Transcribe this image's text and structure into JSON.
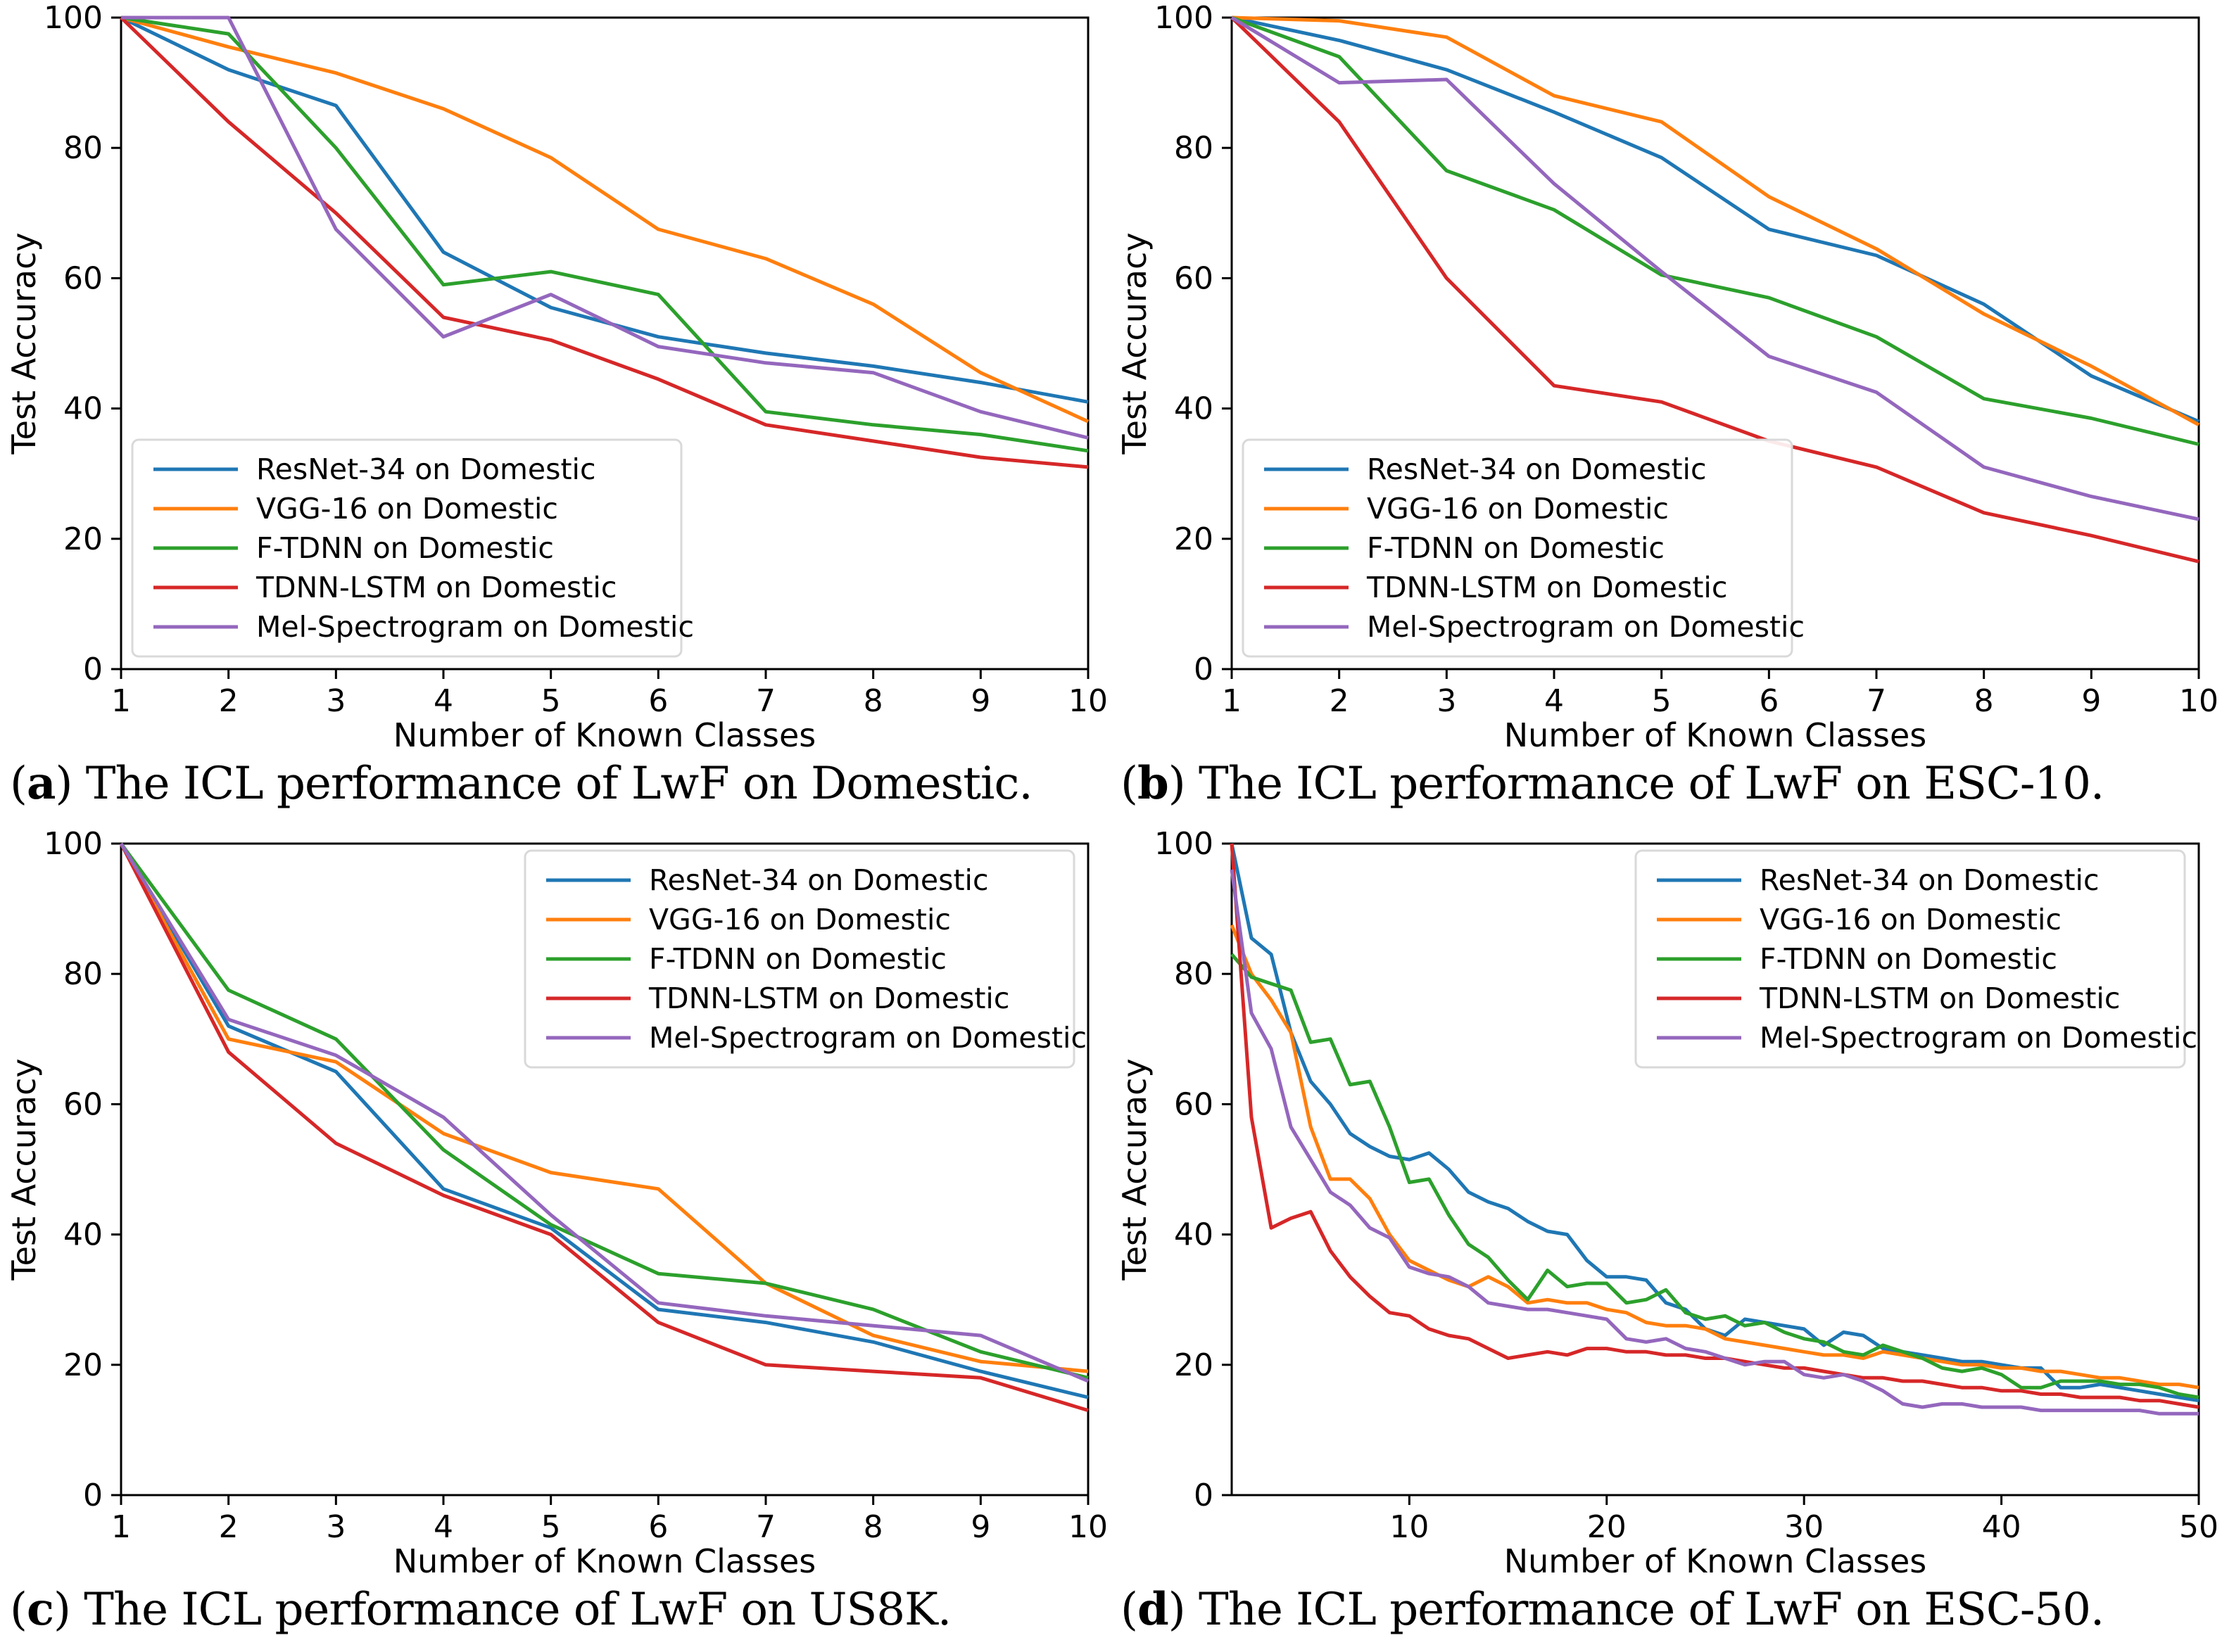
{
  "style": {
    "background": "#ffffff",
    "axis_color": "#000000",
    "legend_border": "#d9d9d9",
    "legend_background": "#ffffff",
    "series_line_width": 5,
    "spine_width": 3
  },
  "chart_data": [
    {
      "id": "a",
      "type": "line",
      "title": "",
      "xlabel": "Number of Known Classes",
      "ylabel": "Test Accuracy",
      "xlim": [
        1,
        10
      ],
      "ylim": [
        0,
        100
      ],
      "x_ticks": [
        1,
        2,
        3,
        4,
        5,
        6,
        7,
        8,
        9,
        10
      ],
      "y_ticks": [
        0,
        20,
        40,
        60,
        80,
        100
      ],
      "grid": false,
      "legend": {
        "location": "lower-left"
      },
      "caption": {
        "letter": "a",
        "text": "The ICL performance of LwF on Domestic."
      },
      "x": [
        1,
        2,
        3,
        4,
        5,
        6,
        7,
        8,
        9,
        10
      ],
      "series": [
        {
          "name": "ResNet-34 on Domestic",
          "color": "#1f77b4",
          "values": [
            100,
            92,
            86.5,
            64,
            55.5,
            51,
            48.5,
            46.5,
            44,
            41
          ]
        },
        {
          "name": "VGG-16 on Domestic",
          "color": "#ff7f0e",
          "values": [
            100,
            95.5,
            91.5,
            86,
            78.5,
            67.5,
            63,
            56,
            45.5,
            38
          ]
        },
        {
          "name": "F-TDNN on Domestic",
          "color": "#2ca02c",
          "values": [
            100,
            97.5,
            80,
            59,
            61,
            57.5,
            39.5,
            37.5,
            36,
            33.5
          ]
        },
        {
          "name": "TDNN-LSTM on Domestic",
          "color": "#d62728",
          "values": [
            100,
            84,
            70,
            54,
            50.5,
            44.5,
            37.5,
            35,
            32.5,
            31
          ]
        },
        {
          "name": "Mel-Spectrogram on Domestic",
          "color": "#9467bd",
          "values": [
            100,
            100,
            67.5,
            51,
            57.5,
            49.5,
            47,
            45.5,
            39.5,
            35.5
          ]
        }
      ]
    },
    {
      "id": "b",
      "type": "line",
      "title": "",
      "xlabel": "Number of Known Classes",
      "ylabel": "Test Accuracy",
      "xlim": [
        1,
        10
      ],
      "ylim": [
        0,
        100
      ],
      "x_ticks": [
        1,
        2,
        3,
        4,
        5,
        6,
        7,
        8,
        9,
        10
      ],
      "y_ticks": [
        0,
        20,
        40,
        60,
        80,
        100
      ],
      "grid": false,
      "legend": {
        "location": "lower-left"
      },
      "caption": {
        "letter": "b",
        "text": "The ICL performance of LwF on ESC-10."
      },
      "x": [
        1,
        2,
        3,
        4,
        5,
        6,
        7,
        8,
        9,
        10
      ],
      "series": [
        {
          "name": "ResNet-34 on Domestic",
          "color": "#1f77b4",
          "values": [
            100,
            96.5,
            92,
            85.5,
            78.5,
            67.5,
            63.5,
            56,
            45,
            38
          ]
        },
        {
          "name": "VGG-16 on Domestic",
          "color": "#ff7f0e",
          "values": [
            100,
            99.5,
            97,
            88,
            84,
            72.5,
            64.5,
            54.5,
            46.5,
            37.5
          ]
        },
        {
          "name": "F-TDNN on Domestic",
          "color": "#2ca02c",
          "values": [
            100,
            94,
            76.5,
            70.5,
            60.5,
            57,
            51,
            41.5,
            38.5,
            34.5
          ]
        },
        {
          "name": "TDNN-LSTM on Domestic",
          "color": "#d62728",
          "values": [
            100,
            84,
            60,
            43.5,
            41,
            35,
            31,
            24,
            20.5,
            16.5
          ]
        },
        {
          "name": "Mel-Spectrogram on Domestic",
          "color": "#9467bd",
          "values": [
            100,
            90,
            90.5,
            74.5,
            61,
            48,
            42.5,
            31,
            26.5,
            23
          ]
        }
      ]
    },
    {
      "id": "c",
      "type": "line",
      "title": "",
      "xlabel": "Number of Known Classes",
      "ylabel": "Test Accuracy",
      "xlim": [
        1,
        10
      ],
      "ylim": [
        0,
        100
      ],
      "x_ticks": [
        1,
        2,
        3,
        4,
        5,
        6,
        7,
        8,
        9,
        10
      ],
      "y_ticks": [
        0,
        20,
        40,
        60,
        80,
        100
      ],
      "grid": false,
      "legend": {
        "location": "upper-right"
      },
      "caption": {
        "letter": "c",
        "text": "The ICL performance of LwF on US8K."
      },
      "x": [
        1,
        2,
        3,
        4,
        5,
        6,
        7,
        8,
        9,
        10
      ],
      "series": [
        {
          "name": "ResNet-34 on Domestic",
          "color": "#1f77b4",
          "values": [
            100,
            72,
            65,
            47,
            41,
            28.5,
            26.5,
            23.5,
            19,
            15
          ]
        },
        {
          "name": "VGG-16 on Domestic",
          "color": "#ff7f0e",
          "values": [
            100,
            70,
            66.5,
            55.5,
            49.5,
            47,
            32.5,
            24.5,
            20.5,
            19
          ]
        },
        {
          "name": "F-TDNN on Domestic",
          "color": "#2ca02c",
          "values": [
            100,
            77.5,
            70,
            53,
            41.5,
            34,
            32.5,
            28.5,
            22,
            18
          ]
        },
        {
          "name": "TDNN-LSTM on Domestic",
          "color": "#d62728",
          "values": [
            100,
            68,
            54,
            46,
            40,
            26.5,
            20,
            19,
            18,
            13
          ]
        },
        {
          "name": "Mel-Spectrogram on Domestic",
          "color": "#9467bd",
          "values": [
            100,
            73,
            67.5,
            58,
            43,
            29.5,
            27.5,
            26,
            24.5,
            17.5
          ]
        }
      ]
    },
    {
      "id": "d",
      "type": "line",
      "title": "",
      "xlabel": "Number of Known Classes",
      "ylabel": "Test Accuracy",
      "xlim": [
        1,
        50
      ],
      "ylim": [
        0,
        100
      ],
      "x_ticks": [
        10,
        20,
        30,
        40,
        50
      ],
      "y_ticks": [
        0,
        20,
        40,
        60,
        80,
        100
      ],
      "grid": false,
      "legend": {
        "location": "upper-right"
      },
      "caption": {
        "letter": "d",
        "text": "The ICL performance of LwF on ESC-50."
      },
      "x": [
        1,
        2,
        3,
        4,
        5,
        6,
        7,
        8,
        9,
        10,
        11,
        12,
        13,
        14,
        15,
        16,
        17,
        18,
        19,
        20,
        21,
        22,
        23,
        24,
        25,
        26,
        27,
        28,
        29,
        30,
        31,
        32,
        33,
        34,
        35,
        36,
        37,
        38,
        39,
        40,
        41,
        42,
        43,
        44,
        45,
        46,
        47,
        48,
        49,
        50
      ],
      "series": [
        {
          "name": "ResNet-34 on Domestic",
          "color": "#1f77b4",
          "values": [
            100,
            85.5,
            83,
            71,
            63.5,
            60,
            55.5,
            53.5,
            52,
            51.5,
            52.5,
            50,
            46.5,
            45,
            44,
            42,
            40.5,
            40,
            36,
            33.5,
            33.5,
            33,
            29.5,
            28.5,
            25.5,
            24.5,
            27,
            26.5,
            26,
            25.5,
            23,
            25,
            24.5,
            22.5,
            22,
            21.5,
            21,
            20.5,
            20.5,
            20,
            19.5,
            19.5,
            16.5,
            16.5,
            17,
            16.5,
            16,
            15.5,
            15,
            14.5
          ]
        },
        {
          "name": "VGG-16 on Domestic",
          "color": "#ff7f0e",
          "values": [
            87.5,
            80,
            76,
            71,
            56.5,
            48.5,
            48.5,
            45.5,
            40,
            36,
            34.5,
            33,
            32,
            33.5,
            32,
            29.5,
            30,
            29.5,
            29.5,
            28.5,
            28,
            26.5,
            26,
            26,
            25.5,
            24,
            23.5,
            23,
            22.5,
            22,
            21.5,
            21.5,
            21,
            22,
            21.5,
            21,
            20.5,
            20,
            20,
            19.5,
            19.5,
            19,
            19,
            18.5,
            18,
            18,
            17.5,
            17,
            17,
            16.5
          ]
        },
        {
          "name": "F-TDNN on Domestic",
          "color": "#2ca02c",
          "values": [
            83,
            79.5,
            78.5,
            77.5,
            69.5,
            70,
            63,
            63.5,
            56.5,
            48,
            48.5,
            43,
            38.5,
            36.5,
            33,
            30,
            34.5,
            32,
            32.5,
            32.5,
            29.5,
            30,
            31.5,
            28,
            27,
            27.5,
            26,
            26.5,
            25,
            24,
            23.5,
            22,
            21.5,
            23,
            22,
            21,
            19.5,
            19,
            19.5,
            18.5,
            16.5,
            16.5,
            17.5,
            17.5,
            17.5,
            17,
            17,
            16.5,
            15.5,
            15
          ]
        },
        {
          "name": "TDNN-LSTM on Domestic",
          "color": "#d62728",
          "values": [
            100,
            58,
            41,
            42.5,
            43.5,
            37.5,
            33.5,
            30.5,
            28,
            27.5,
            25.5,
            24.5,
            24,
            22.5,
            21,
            21.5,
            22,
            21.5,
            22.5,
            22.5,
            22,
            22,
            21.5,
            21.5,
            21,
            21,
            20.5,
            20,
            19.5,
            19.5,
            19,
            18.5,
            18,
            18,
            17.5,
            17.5,
            17,
            16.5,
            16.5,
            16,
            16,
            15.5,
            15.5,
            15,
            15,
            15,
            14.5,
            14.5,
            14,
            13.5
          ]
        },
        {
          "name": "Mel-Spectrogram on Domestic",
          "color": "#9467bd",
          "values": [
            96,
            74,
            68.5,
            56.5,
            51.5,
            46.5,
            44.5,
            41,
            39.5,
            35,
            34,
            33.5,
            32,
            29.5,
            29,
            28.5,
            28.5,
            28,
            27.5,
            27,
            24,
            23.5,
            24,
            22.5,
            22,
            21,
            20,
            20.5,
            20.5,
            18.5,
            18,
            18.5,
            17.5,
            16,
            14,
            13.5,
            14,
            14,
            13.5,
            13.5,
            13.5,
            13,
            13,
            13,
            13,
            13,
            13,
            12.5,
            12.5,
            12.5
          ]
        }
      ]
    }
  ]
}
